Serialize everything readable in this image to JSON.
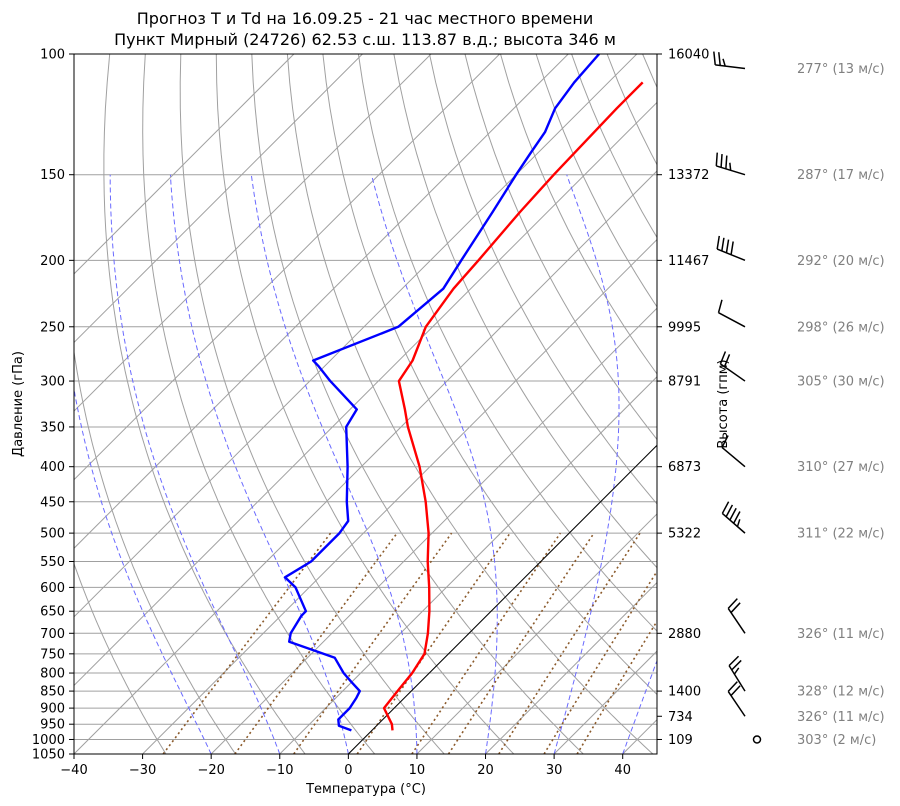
{
  "chart_data": {
    "type": "line",
    "title": "Прогноз T и Td на 16.09.25 - 21 час местного времени",
    "subtitle": "Пункт Мирный (24726) 62.53 с.ш. 113.87 в.д.; высота 346 м",
    "xlabel": "Температура (°C)",
    "ylabel": "Давление (гПа)",
    "ylabel_right": "Высота (гпм)",
    "xlim": [
      -40,
      45
    ],
    "ylim": [
      1050,
      100
    ],
    "y_scale": "log",
    "grid": true,
    "x_ticks": [
      -40,
      -30,
      -20,
      -10,
      0,
      10,
      20,
      30,
      40
    ],
    "p_ticks": [
      100,
      150,
      200,
      250,
      300,
      350,
      400,
      450,
      500,
      550,
      600,
      650,
      700,
      750,
      800,
      850,
      900,
      950,
      1000,
      1050
    ],
    "height_ticks": [
      {
        "p": 100,
        "label": "16040"
      },
      {
        "p": 150,
        "label": "13372"
      },
      {
        "p": 200,
        "label": "11467"
      },
      {
        "p": 250,
        "label": "9995"
      },
      {
        "p": 300,
        "label": "8791"
      },
      {
        "p": 400,
        "label": "6873"
      },
      {
        "p": 500,
        "label": "5322"
      },
      {
        "p": 700,
        "label": "2880"
      },
      {
        "p": 850,
        "label": "1400"
      },
      {
        "p": 925,
        "label": "734"
      },
      {
        "p": 1000,
        "label": "109"
      }
    ],
    "series": [
      {
        "role": "temperature",
        "color": "#ff0000",
        "points": [
          [
            970,
            3
          ],
          [
            950,
            2
          ],
          [
            900,
            -1.5
          ],
          [
            850,
            -2
          ],
          [
            800,
            -2.5
          ],
          [
            750,
            -3.5
          ],
          [
            700,
            -6
          ],
          [
            650,
            -9
          ],
          [
            600,
            -12.5
          ],
          [
            550,
            -16.5
          ],
          [
            500,
            -20.5
          ],
          [
            450,
            -25.5
          ],
          [
            400,
            -31.5
          ],
          [
            350,
            -39
          ],
          [
            330,
            -42
          ],
          [
            300,
            -47
          ],
          [
            280,
            -48
          ],
          [
            250,
            -51
          ],
          [
            220,
            -52.5
          ],
          [
            200,
            -53
          ],
          [
            170,
            -54
          ],
          [
            150,
            -54.5
          ],
          [
            120,
            -55
          ],
          [
            110,
            -55
          ]
        ]
      },
      {
        "role": "dewpoint",
        "color": "#0000ff",
        "points": [
          [
            970,
            -3
          ],
          [
            955,
            -5.5
          ],
          [
            935,
            -6.5
          ],
          [
            900,
            -6.5
          ],
          [
            870,
            -7
          ],
          [
            850,
            -7.5
          ],
          [
            825,
            -10
          ],
          [
            800,
            -12.5
          ],
          [
            760,
            -16
          ],
          [
            720,
            -25
          ],
          [
            700,
            -26
          ],
          [
            660,
            -27
          ],
          [
            650,
            -27
          ],
          [
            600,
            -32
          ],
          [
            580,
            -35
          ],
          [
            550,
            -33.5
          ],
          [
            500,
            -33.5
          ],
          [
            480,
            -34
          ],
          [
            450,
            -37
          ],
          [
            400,
            -42
          ],
          [
            350,
            -48
          ],
          [
            330,
            -49
          ],
          [
            300,
            -57
          ],
          [
            285,
            -61
          ],
          [
            280,
            -62.5
          ],
          [
            250,
            -55
          ],
          [
            220,
            -54
          ],
          [
            200,
            -55.5
          ],
          [
            170,
            -58
          ],
          [
            150,
            -60
          ],
          [
            140,
            -61
          ],
          [
            130,
            -62
          ],
          [
            120,
            -64
          ],
          [
            110,
            -65
          ],
          [
            100,
            -65.5
          ]
        ]
      }
    ],
    "winds": [
      {
        "p": 105,
        "dir": 277,
        "speed": 13,
        "label": "277° (13 м/с)"
      },
      {
        "p": 150,
        "dir": 287,
        "speed": 17,
        "label": "287° (17 м/с)"
      },
      {
        "p": 200,
        "dir": 292,
        "speed": 20,
        "label": "292° (20 м/с)"
      },
      {
        "p": 250,
        "dir": 298,
        "speed": 26,
        "label": "298° (26 м/с)"
      },
      {
        "p": 300,
        "dir": 305,
        "speed": 30,
        "label": "305° (30 м/с)"
      },
      {
        "p": 400,
        "dir": 310,
        "speed": 27,
        "label": "310° (27 м/с)"
      },
      {
        "p": 500,
        "dir": 311,
        "speed": 22,
        "label": "311° (22 м/с)"
      },
      {
        "p": 700,
        "dir": 326,
        "speed": 11,
        "label": "326° (11 м/с)"
      },
      {
        "p": 850,
        "dir": 328,
        "speed": 12,
        "label": "328° (12 м/с)"
      },
      {
        "p": 925,
        "dir": 326,
        "speed": 11,
        "label": "326° (11 м/с)"
      },
      {
        "p": 1000,
        "dir": 303,
        "speed": 2,
        "label": "303° (2 м/с)"
      }
    ]
  }
}
